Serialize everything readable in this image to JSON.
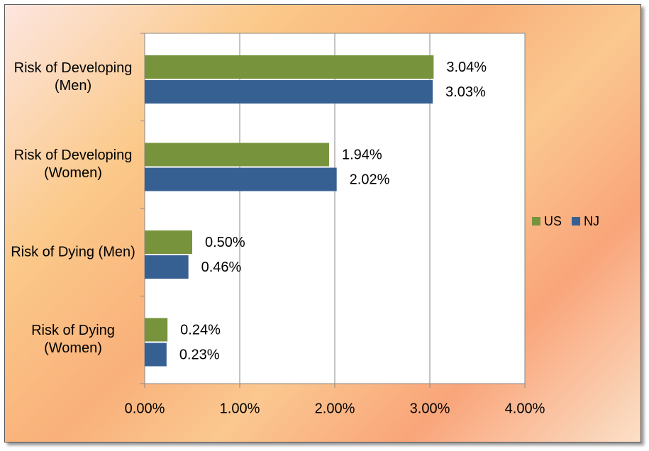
{
  "chart_data": {
    "type": "bar",
    "orientation": "horizontal",
    "categories": [
      "Risk of Developing (Men)",
      "Risk of Developing (Women)",
      "Risk of Dying (Men)",
      "Risk of Dying (Women)"
    ],
    "series": [
      {
        "name": "US",
        "color": "#77933c",
        "values": [
          3.04,
          1.94,
          0.5,
          0.24
        ],
        "value_labels": [
          "3.04%",
          "1.94%",
          "0.50%",
          "0.24%"
        ]
      },
      {
        "name": "NJ",
        "color": "#376092",
        "values": [
          3.03,
          2.02,
          0.46,
          0.23
        ],
        "value_labels": [
          "3.03%",
          "2.02%",
          "0.46%",
          "0.23%"
        ]
      }
    ],
    "xlim": [
      0,
      4
    ],
    "xticks": [
      {
        "value": 0,
        "label": "0.00%"
      },
      {
        "value": 1,
        "label": "1.00%"
      },
      {
        "value": 2,
        "label": "2.00%"
      },
      {
        "value": 3,
        "label": "3.00%"
      },
      {
        "value": 4,
        "label": "4.00%"
      }
    ],
    "grid": true,
    "legend": "right"
  }
}
